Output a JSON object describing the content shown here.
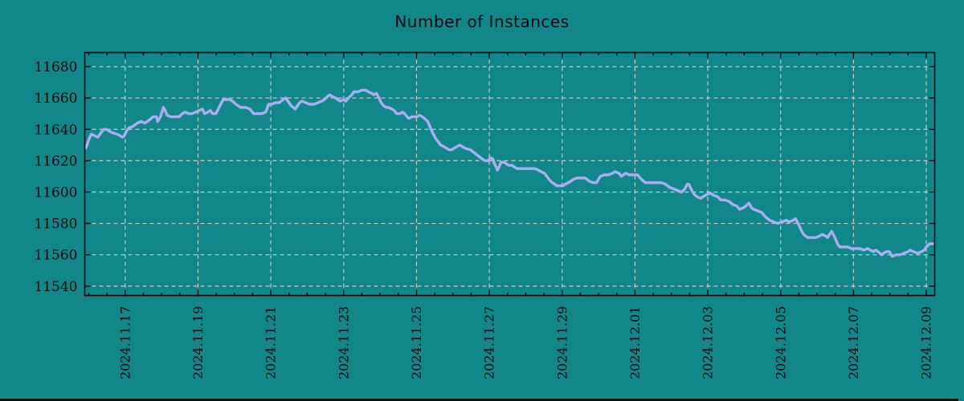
{
  "colors": {
    "background": "#128789",
    "line": "#a8aeef",
    "grid": "#cbccc6",
    "axis": "#000000",
    "text": "#0a0a0a",
    "bottom_bar": "#000000"
  },
  "chart_data": {
    "type": "line",
    "title": "Number of Instances",
    "legend": "none",
    "grid": "dashed major gridlines, both axes",
    "x_axis": {
      "unit": "days since 2024-11-16 00:00",
      "xlim": [
        -0.11,
        23.23
      ],
      "tick_values": [
        1,
        3,
        5,
        7,
        9,
        11,
        13,
        15,
        17,
        19,
        21,
        23
      ],
      "tick_labels": [
        "2024.11.17",
        "2024.11.19",
        "2024.11.21",
        "2024.11.23",
        "2024.11.25",
        "2024.11.27",
        "2024.11.29",
        "2024.12.01",
        "2024.12.03",
        "2024.12.05",
        "2024.12.07",
        "2024.12.09"
      ],
      "minor_tick_step": 0.5,
      "label_rotation_deg": -90
    },
    "y_axis": {
      "ylim": [
        11534,
        11689
      ],
      "tick_values": [
        11540,
        11560,
        11580,
        11600,
        11620,
        11640,
        11660,
        11680
      ],
      "tick_labels": [
        "11540",
        "11560",
        "11580",
        "11600",
        "11620",
        "11640",
        "11660",
        "11680"
      ]
    },
    "series": [
      {
        "name": "instances",
        "color": "#a8aeef",
        "points": [
          [
            -0.08,
            11628
          ],
          [
            0.01,
            11634
          ],
          [
            0.07,
            11637
          ],
          [
            0.16,
            11636
          ],
          [
            0.25,
            11635
          ],
          [
            0.34,
            11638
          ],
          [
            0.41,
            11640
          ],
          [
            0.49,
            11640
          ],
          [
            0.63,
            11638
          ],
          [
            0.78,
            11637
          ],
          [
            0.93,
            11635
          ],
          [
            0.98,
            11636
          ],
          [
            1.04,
            11639
          ],
          [
            1.11,
            11641
          ],
          [
            1.22,
            11642
          ],
          [
            1.33,
            11644
          ],
          [
            1.44,
            11645
          ],
          [
            1.55,
            11644
          ],
          [
            1.66,
            11646
          ],
          [
            1.77,
            11648
          ],
          [
            1.86,
            11648
          ],
          [
            1.89,
            11645
          ],
          [
            1.97,
            11648
          ],
          [
            2.05,
            11654
          ],
          [
            2.1,
            11652
          ],
          [
            2.15,
            11649
          ],
          [
            2.26,
            11648
          ],
          [
            2.37,
            11648
          ],
          [
            2.48,
            11648
          ],
          [
            2.57,
            11650
          ],
          [
            2.65,
            11651
          ],
          [
            2.74,
            11650
          ],
          [
            2.83,
            11650
          ],
          [
            2.94,
            11651
          ],
          [
            3.03,
            11652
          ],
          [
            3.12,
            11653
          ],
          [
            3.18,
            11650
          ],
          [
            3.27,
            11651
          ],
          [
            3.34,
            11652
          ],
          [
            3.4,
            11650
          ],
          [
            3.49,
            11650
          ],
          [
            3.6,
            11655
          ],
          [
            3.69,
            11659
          ],
          [
            3.78,
            11659
          ],
          [
            3.87,
            11659
          ],
          [
            3.95,
            11658
          ],
          [
            4.04,
            11656
          ],
          [
            4.17,
            11654
          ],
          [
            4.31,
            11654
          ],
          [
            4.42,
            11653
          ],
          [
            4.53,
            11650
          ],
          [
            4.64,
            11650
          ],
          [
            4.75,
            11650
          ],
          [
            4.86,
            11651
          ],
          [
            4.94,
            11656
          ],
          [
            5.01,
            11656
          ],
          [
            5.12,
            11657
          ],
          [
            5.23,
            11657
          ],
          [
            5.34,
            11659
          ],
          [
            5.41,
            11660
          ],
          [
            5.56,
            11655
          ],
          [
            5.67,
            11653
          ],
          [
            5.79,
            11657
          ],
          [
            5.85,
            11658
          ],
          [
            5.96,
            11657
          ],
          [
            6.07,
            11656
          ],
          [
            6.18,
            11656
          ],
          [
            6.29,
            11657
          ],
          [
            6.4,
            11658
          ],
          [
            6.47,
            11659
          ],
          [
            6.56,
            11661
          ],
          [
            6.62,
            11662
          ],
          [
            6.69,
            11661
          ],
          [
            6.78,
            11660
          ],
          [
            6.84,
            11659
          ],
          [
            6.91,
            11658
          ],
          [
            7.0,
            11659
          ],
          [
            7.06,
            11658
          ],
          [
            7.13,
            11660
          ],
          [
            7.22,
            11662
          ],
          [
            7.28,
            11664
          ],
          [
            7.39,
            11664
          ],
          [
            7.5,
            11665
          ],
          [
            7.61,
            11665
          ],
          [
            7.68,
            11664
          ],
          [
            7.77,
            11663
          ],
          [
            7.83,
            11662
          ],
          [
            7.9,
            11663
          ],
          [
            7.97,
            11660
          ],
          [
            8.03,
            11657
          ],
          [
            8.1,
            11655
          ],
          [
            8.17,
            11654
          ],
          [
            8.23,
            11654
          ],
          [
            8.32,
            11653
          ],
          [
            8.39,
            11652
          ],
          [
            8.45,
            11650
          ],
          [
            8.54,
            11650
          ],
          [
            8.61,
            11651
          ],
          [
            8.67,
            11650
          ],
          [
            8.74,
            11648
          ],
          [
            8.79,
            11647
          ],
          [
            8.87,
            11648
          ],
          [
            8.94,
            11648
          ],
          [
            9.0,
            11648
          ],
          [
            9.09,
            11649
          ],
          [
            9.16,
            11648
          ],
          [
            9.22,
            11647
          ],
          [
            9.31,
            11645
          ],
          [
            9.38,
            11641
          ],
          [
            9.44,
            11638
          ],
          [
            9.53,
            11634
          ],
          [
            9.6,
            11632
          ],
          [
            9.66,
            11630
          ],
          [
            9.75,
            11629
          ],
          [
            9.82,
            11628
          ],
          [
            9.89,
            11627
          ],
          [
            9.97,
            11627
          ],
          [
            10.04,
            11628
          ],
          [
            10.11,
            11629
          ],
          [
            10.19,
            11630
          ],
          [
            10.26,
            11629
          ],
          [
            10.33,
            11628
          ],
          [
            10.48,
            11627
          ],
          [
            10.59,
            11625
          ],
          [
            10.7,
            11623
          ],
          [
            10.81,
            11621
          ],
          [
            10.88,
            11620
          ],
          [
            10.97,
            11620
          ],
          [
            11.03,
            11622
          ],
          [
            11.1,
            11621
          ],
          [
            11.14,
            11618
          ],
          [
            11.19,
            11616
          ],
          [
            11.22,
            11614
          ],
          [
            11.27,
            11616
          ],
          [
            11.32,
            11619
          ],
          [
            11.41,
            11619
          ],
          [
            11.47,
            11618
          ],
          [
            11.54,
            11617
          ],
          [
            11.63,
            11617
          ],
          [
            11.69,
            11616
          ],
          [
            11.76,
            11615
          ],
          [
            11.85,
            11615
          ],
          [
            11.91,
            11615
          ],
          [
            12.02,
            11615
          ],
          [
            12.13,
            11615
          ],
          [
            12.24,
            11615
          ],
          [
            12.35,
            11614
          ],
          [
            12.42,
            11613
          ],
          [
            12.51,
            11612
          ],
          [
            12.58,
            11610
          ],
          [
            12.64,
            11608
          ],
          [
            12.73,
            11606
          ],
          [
            12.8,
            11605
          ],
          [
            12.86,
            11604
          ],
          [
            12.95,
            11604
          ],
          [
            13.02,
            11604
          ],
          [
            13.08,
            11605
          ],
          [
            13.17,
            11606
          ],
          [
            13.24,
            11607
          ],
          [
            13.3,
            11608
          ],
          [
            13.41,
            11609
          ],
          [
            13.52,
            11609
          ],
          [
            13.63,
            11609
          ],
          [
            13.74,
            11607
          ],
          [
            13.85,
            11606
          ],
          [
            13.94,
            11606
          ],
          [
            14.05,
            11610
          ],
          [
            14.16,
            11611
          ],
          [
            14.27,
            11611
          ],
          [
            14.38,
            11612
          ],
          [
            14.45,
            11613
          ],
          [
            14.56,
            11612
          ],
          [
            14.63,
            11610
          ],
          [
            14.74,
            11612
          ],
          [
            14.85,
            11611
          ],
          [
            14.96,
            11611
          ],
          [
            15.07,
            11611
          ],
          [
            15.18,
            11608
          ],
          [
            15.29,
            11606
          ],
          [
            15.4,
            11606
          ],
          [
            15.51,
            11606
          ],
          [
            15.62,
            11606
          ],
          [
            15.73,
            11606
          ],
          [
            15.84,
            11605
          ],
          [
            15.95,
            11603
          ],
          [
            16.06,
            11602
          ],
          [
            16.17,
            11601
          ],
          [
            16.28,
            11600
          ],
          [
            16.37,
            11602
          ],
          [
            16.43,
            11605
          ],
          [
            16.48,
            11605
          ],
          [
            16.54,
            11602
          ],
          [
            16.61,
            11599
          ],
          [
            16.7,
            11597
          ],
          [
            16.81,
            11596
          ],
          [
            16.87,
            11597
          ],
          [
            16.94,
            11598
          ],
          [
            17.03,
            11599
          ],
          [
            17.09,
            11599
          ],
          [
            17.16,
            11598
          ],
          [
            17.27,
            11597
          ],
          [
            17.36,
            11595
          ],
          [
            17.47,
            11595
          ],
          [
            17.58,
            11594
          ],
          [
            17.69,
            11592
          ],
          [
            17.8,
            11591
          ],
          [
            17.87,
            11589
          ],
          [
            17.98,
            11590
          ],
          [
            18.04,
            11591
          ],
          [
            18.13,
            11593
          ],
          [
            18.2,
            11590
          ],
          [
            18.26,
            11589
          ],
          [
            18.37,
            11588
          ],
          [
            18.48,
            11587
          ],
          [
            18.59,
            11584
          ],
          [
            18.7,
            11582
          ],
          [
            18.81,
            11581
          ],
          [
            18.92,
            11580
          ],
          [
            19.04,
            11581
          ],
          [
            19.15,
            11582
          ],
          [
            19.23,
            11581
          ],
          [
            19.34,
            11582
          ],
          [
            19.41,
            11583
          ],
          [
            19.48,
            11580
          ],
          [
            19.56,
            11576
          ],
          [
            19.63,
            11573
          ],
          [
            19.74,
            11571
          ],
          [
            19.85,
            11571
          ],
          [
            19.96,
            11571
          ],
          [
            20.07,
            11572
          ],
          [
            20.14,
            11573
          ],
          [
            20.23,
            11572
          ],
          [
            20.29,
            11571
          ],
          [
            20.4,
            11575
          ],
          [
            20.47,
            11572
          ],
          [
            20.56,
            11567
          ],
          [
            20.62,
            11565
          ],
          [
            20.73,
            11565
          ],
          [
            20.84,
            11565
          ],
          [
            20.95,
            11564
          ],
          [
            21.06,
            11564
          ],
          [
            21.17,
            11564
          ],
          [
            21.28,
            11563
          ],
          [
            21.39,
            11564
          ],
          [
            21.46,
            11563
          ],
          [
            21.55,
            11562
          ],
          [
            21.61,
            11563
          ],
          [
            21.68,
            11562
          ],
          [
            21.77,
            11560
          ],
          [
            21.83,
            11561
          ],
          [
            21.9,
            11562
          ],
          [
            21.99,
            11562
          ],
          [
            22.06,
            11559
          ],
          [
            22.17,
            11560
          ],
          [
            22.28,
            11560
          ],
          [
            22.39,
            11561
          ],
          [
            22.5,
            11562
          ],
          [
            22.56,
            11563
          ],
          [
            22.65,
            11562
          ],
          [
            22.76,
            11561
          ],
          [
            22.87,
            11562
          ],
          [
            22.94,
            11563
          ],
          [
            23.0,
            11565
          ],
          [
            23.09,
            11567
          ],
          [
            23.16,
            11567
          ],
          [
            23.22,
            11567
          ]
        ]
      }
    ]
  }
}
